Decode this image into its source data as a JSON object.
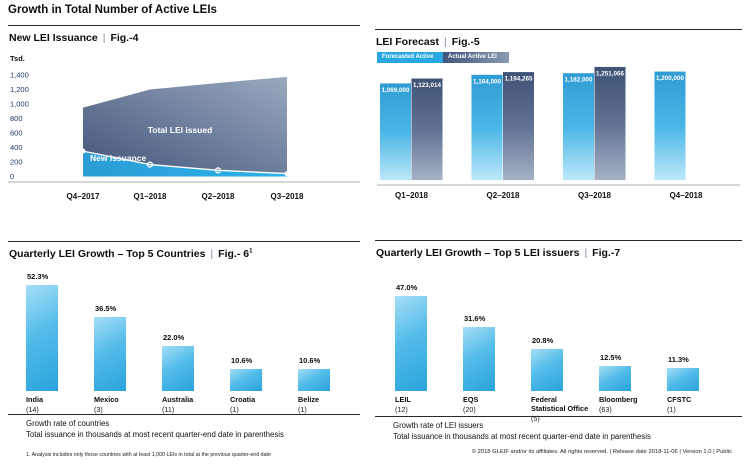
{
  "page_title": "Growth in Total Number of Active LEIs",
  "pipe": "|",
  "colors": {
    "brand_blue": "#29A7E0",
    "dark_navy": "#41567A",
    "axis_text": "#1D3A6D"
  },
  "chart_data": [
    {
      "id": "fig4",
      "type": "area",
      "title": "New LEI Issuance",
      "fig_label": "Fig.-4",
      "unit_label": "Tsd.",
      "x": [
        "Q4–2017",
        "Q1–2018",
        "Q2–2018",
        "Q3–2018"
      ],
      "ylim": [
        0,
        1400
      ],
      "ytick_values": [
        0,
        200,
        400,
        600,
        800,
        1000,
        1200,
        1400
      ],
      "ytick_labels": [
        "0",
        "200",
        "400",
        "600",
        "800",
        "1,000",
        "1,200",
        "1,400"
      ],
      "series": [
        {
          "name": "Total LEI issued",
          "values": [
            950,
            1200,
            1290,
            1375
          ]
        },
        {
          "name": "New issuance",
          "values": [
            350,
            165,
            85,
            40
          ]
        }
      ],
      "legend_position": "inside-area",
      "grid": false
    },
    {
      "id": "fig5",
      "type": "bar",
      "title": "LEI Forecast",
      "fig_label": "Fig.-5",
      "categories": [
        "Q1–2018",
        "Q2–2018",
        "Q3–2018",
        "Q4–2018"
      ],
      "series": [
        {
          "name": "Forecasted Active LEI",
          "values": [
            1069000,
            1164000,
            1182000,
            1200000
          ],
          "labels": [
            "1,069,000",
            "1,164,000",
            "1,182,000",
            "1,200,000"
          ]
        },
        {
          "name": "Actual Active LEI",
          "values": [
            1123014,
            1194265,
            1251066,
            null
          ],
          "labels": [
            "1,123,014",
            "1,194,265",
            "1,251,066",
            null
          ]
        }
      ],
      "legend_position": "top-left",
      "grid": false
    },
    {
      "id": "fig6",
      "type": "bar",
      "title": "Quarterly LEI Growth – Top 5 Countries",
      "fig_label": "Fig.- 6",
      "fig_superscript": "1",
      "categories": [
        "India",
        "Mexico",
        "Australia",
        "Croatia",
        "Belize"
      ],
      "counts": [
        "(14)",
        "(3)",
        "(11)",
        "(1)",
        "(1)"
      ],
      "values": [
        52.3,
        36.5,
        22.0,
        10.6,
        10.6
      ],
      "value_labels": [
        "52.3%",
        "36.5%",
        "22.0%",
        "10.6%",
        "10.6%"
      ],
      "notes": [
        "Growth rate of countries",
        "Total issuance in thousands at most recent quarter-end date in parenthesis"
      ],
      "grid": false
    },
    {
      "id": "fig7",
      "type": "bar",
      "title": "Quarterly LEI Growth – Top 5 LEI issuers",
      "fig_label": "Fig.-7",
      "categories": [
        "LEIL",
        "EQS",
        "Federal\nStatistical Office",
        "Bloomberg",
        "CFSTC"
      ],
      "counts": [
        "(12)",
        "(20)",
        "(5)",
        "(63)",
        "(1)"
      ],
      "values": [
        47.0,
        31.6,
        20.8,
        12.5,
        11.3
      ],
      "value_labels": [
        "47.0%",
        "31.6%",
        "20.8%",
        "12.5%",
        "11.3%"
      ],
      "notes": [
        "Growth rate of LEI issuers",
        "Total issuance in thousands at most recent quarter-end date in parenthesis"
      ],
      "grid": false
    }
  ],
  "footnote": "1. Analysis includes only those countries with at least 1,000 LEIs in total at the previous quarter-end date",
  "copyright": "© 2018 GLEIF and/or its affiliates. All rights reserved.  |  Release date 2018-11-06  |  Version 1.0  |  Public"
}
